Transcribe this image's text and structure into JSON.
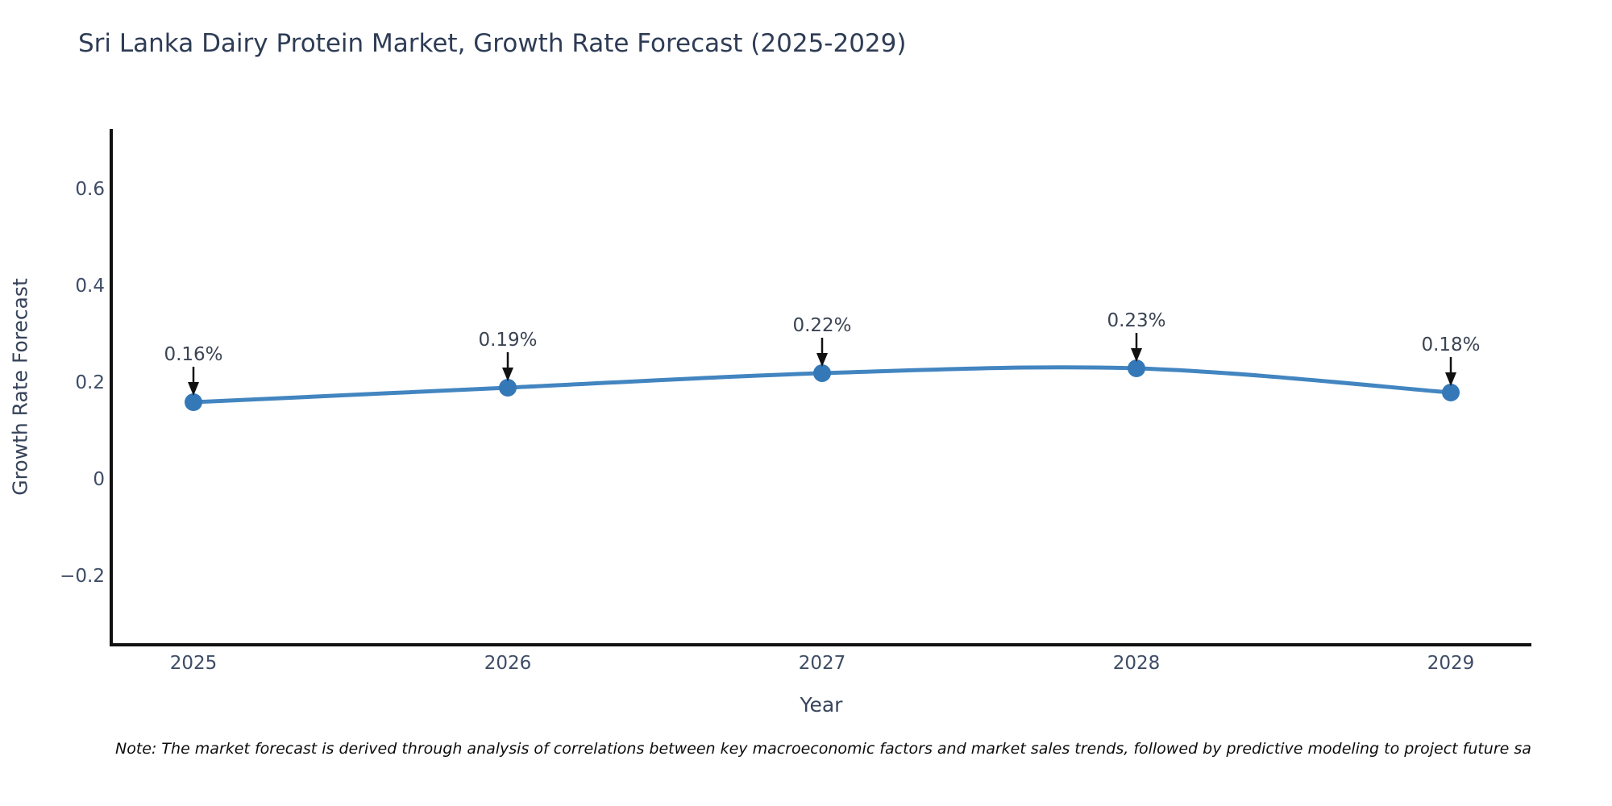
{
  "page": {
    "background": "#ffffff"
  },
  "chart_data": {
    "type": "line",
    "title": "Sri Lanka Dairy Protein Market, Growth Rate Forecast (2025-2029)",
    "xlabel": "Year",
    "ylabel": "Growth Rate Forecast",
    "categories": [
      "2025",
      "2026",
      "2027",
      "2028",
      "2029"
    ],
    "series": [
      {
        "name": "Growth Rate Forecast",
        "values": [
          0.16,
          0.19,
          0.22,
          0.23,
          0.18
        ]
      }
    ],
    "point_labels": [
      "0.16%",
      "0.19%",
      "0.22%",
      "0.23%",
      "0.18%"
    ],
    "yticks": [
      0.6,
      0.4,
      0.2,
      0,
      -0.2
    ],
    "ytick_labels": [
      "0.6",
      "0.4",
      "0.2",
      "0",
      "−0.2"
    ],
    "ylim": [
      -0.34,
      0.73
    ],
    "grid": false,
    "legend": "none",
    "colors": {
      "line": "#4285c0",
      "marker": "#3578b8",
      "arrow": "#111111",
      "axis": "#111111",
      "tick_label": "#3e4c66",
      "annotation_text": "#3b4453"
    }
  },
  "note": {
    "text": "Note: The market forecast is derived through analysis of correlations between key macroeconomic factors and market sales trends, followed by predictive modeling to project future sa"
  }
}
